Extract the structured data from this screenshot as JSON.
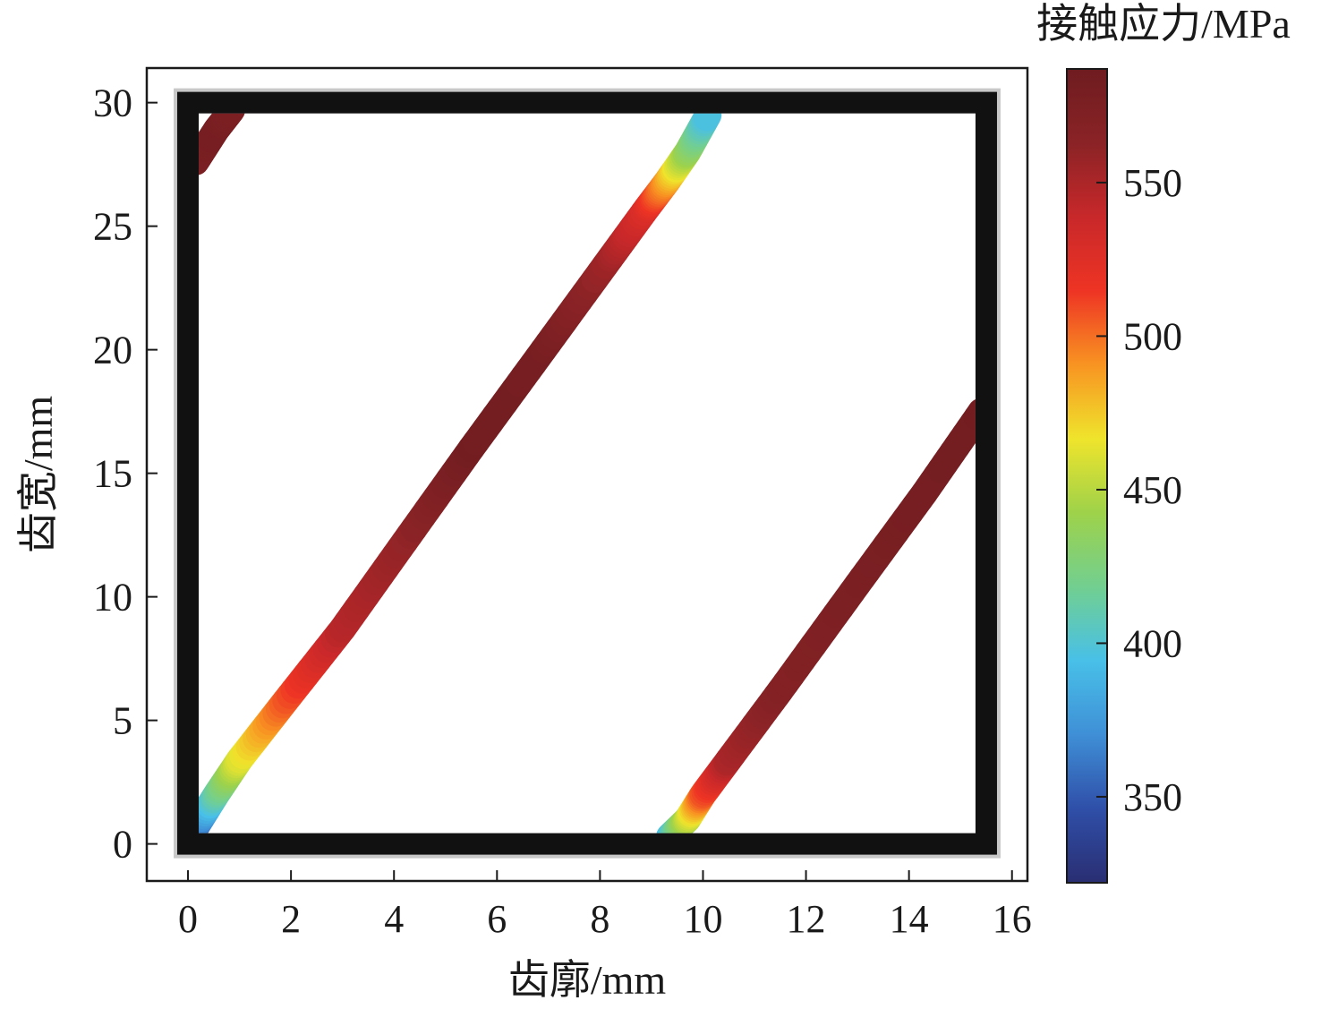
{
  "chart_data": {
    "type": "heatmap",
    "xlabel": "齿廓/mm",
    "ylabel": "齿宽/mm",
    "colorbar_label": "接触应力/MPa",
    "xlim": [
      -0.8,
      16.3
    ],
    "ylim": [
      -1.5,
      31.4
    ],
    "xticks": [
      "0",
      "2",
      "4",
      "6",
      "8",
      "10",
      "12",
      "14",
      "16"
    ],
    "yticks": [
      "0",
      "5",
      "10",
      "15",
      "20",
      "25",
      "30"
    ],
    "colorbar": {
      "range": [
        322,
        587
      ],
      "ticks": [
        "350",
        "400",
        "450",
        "500",
        "550"
      ],
      "colormap": "jet-like",
      "colors": [
        "#2a2e72",
        "#2f4fa8",
        "#3f8fd6",
        "#48c0e8",
        "#72cf90",
        "#9ed24a",
        "#efe42c",
        "#f89422",
        "#ee3424",
        "#c8282a",
        "#8a2326",
        "#6e1c20"
      ]
    },
    "contact_region": {
      "x_range": [
        0,
        15.5
      ],
      "y_range": [
        0,
        30
      ],
      "border_color": "#111111"
    },
    "contact_lines": [
      {
        "points": [
          {
            "x": 0.1,
            "y": 0.5,
            "stress": 345
          },
          {
            "x": 0.55,
            "y": 2.0,
            "stress": 410
          },
          {
            "x": 1.0,
            "y": 3.4,
            "stress": 460
          },
          {
            "x": 1.9,
            "y": 5.8,
            "stress": 505
          },
          {
            "x": 3.0,
            "y": 8.7,
            "stress": 545
          },
          {
            "x": 4.3,
            "y": 12.5,
            "stress": 560
          },
          {
            "x": 5.5,
            "y": 16.0,
            "stress": 582
          },
          {
            "x": 6.8,
            "y": 19.7,
            "stress": 580
          },
          {
            "x": 8.2,
            "y": 23.7,
            "stress": 555
          },
          {
            "x": 8.9,
            "y": 25.7,
            "stress": 528
          },
          {
            "x": 9.3,
            "y": 26.8,
            "stress": 490
          },
          {
            "x": 9.7,
            "y": 28.0,
            "stress": 440
          },
          {
            "x": 10.1,
            "y": 29.5,
            "stress": 395
          }
        ]
      },
      {
        "points": [
          {
            "x": 9.35,
            "y": 0.3,
            "stress": 390
          },
          {
            "x": 9.7,
            "y": 1.0,
            "stress": 450
          },
          {
            "x": 10.0,
            "y": 2.0,
            "stress": 505
          },
          {
            "x": 10.5,
            "y": 3.4,
            "stress": 550
          },
          {
            "x": 11.5,
            "y": 6.2,
            "stress": 568
          },
          {
            "x": 13.0,
            "y": 10.5,
            "stress": 575
          },
          {
            "x": 14.3,
            "y": 14.2,
            "stress": 580
          },
          {
            "x": 15.4,
            "y": 17.5,
            "stress": 582
          }
        ]
      },
      {
        "points": [
          {
            "x": 0.15,
            "y": 27.6,
            "stress": 575
          },
          {
            "x": 0.55,
            "y": 28.9,
            "stress": 580
          },
          {
            "x": 0.85,
            "y": 29.7,
            "stress": 575
          }
        ]
      }
    ]
  }
}
